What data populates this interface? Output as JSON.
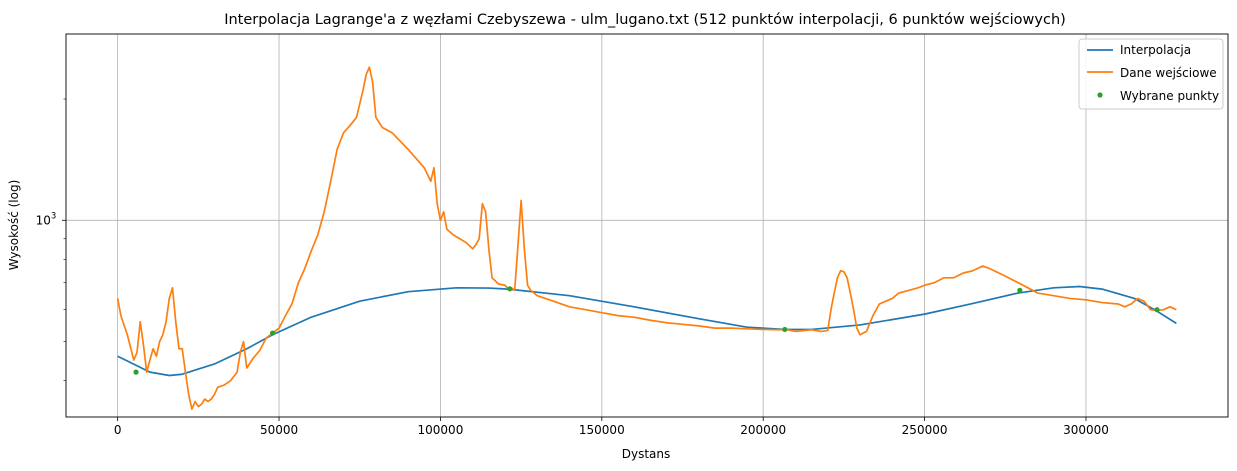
{
  "chart_data": {
    "type": "line",
    "title": "Interpolacja Lagrange'a z węzłami Czebyszewa - ulm_lugano.txt (512 punktów interpolacji, 6 punktów wejściowych)",
    "xlabel": "Dystans",
    "ylabel": "Wysokość (log)",
    "xlim": [
      -16000,
      344000
    ],
    "ylim": [
      325,
      2900
    ],
    "yscale": "log",
    "grid": true,
    "legend_position": "top-right",
    "x_ticks": [
      0,
      50000,
      100000,
      150000,
      200000,
      250000,
      300000
    ],
    "x_tick_labels": [
      "0",
      "50000",
      "100000",
      "150000",
      "200000",
      "250000",
      "300000"
    ],
    "y_ticks": [
      1000
    ],
    "y_tick_labels": [
      "10^3"
    ],
    "y_tick_base": "10",
    "y_tick_exp": "3",
    "y_minor_ticks": [
      400,
      500,
      600,
      700,
      800,
      900,
      2000
    ],
    "colors": {
      "interpolation": "#1f77b4",
      "input": "#ff7f0e",
      "selected": "#2ca02c",
      "grid": "#b0b0b0"
    },
    "series": [
      {
        "name": "Interpolacja",
        "style": "line",
        "color": "#1f77b4",
        "x": [
          0,
          10000,
          16000,
          20000,
          30000,
          40000,
          48000,
          60000,
          75000,
          90000,
          105000,
          115000,
          121000,
          140000,
          160000,
          180000,
          195000,
          207000,
          215000,
          230000,
          250000,
          265000,
          279000,
          290000,
          298000,
          305000,
          315000,
          322000,
          328000
        ],
        "values": [
          460,
          420,
          412,
          415,
          440,
          480,
          520,
          575,
          630,
          665,
          680,
          679,
          675,
          650,
          610,
          570,
          543,
          536,
          536,
          550,
          585,
          622,
          660,
          680,
          685,
          675,
          640,
          595,
          555
        ]
      },
      {
        "name": "Dane wejściowe",
        "style": "line",
        "color": "#ff7f0e",
        "x": [
          0,
          1000,
          3000,
          5000,
          6000,
          7000,
          8000,
          9000,
          10000,
          11000,
          12000,
          13000,
          14000,
          15000,
          16000,
          17000,
          18000,
          19000,
          20000,
          21000,
          22000,
          23000,
          24000,
          25000,
          26000,
          27000,
          28000,
          29000,
          30000,
          31000,
          33000,
          35000,
          37000,
          38000,
          39000,
          40000,
          42000,
          44000,
          46000,
          48000,
          50000,
          52000,
          54000,
          56000,
          58000,
          60000,
          62000,
          64000,
          66000,
          68000,
          70000,
          72000,
          74000,
          76000,
          77000,
          78000,
          79000,
          80000,
          82000,
          85000,
          90000,
          95000,
          97000,
          98000,
          99000,
          100000,
          101000,
          102000,
          104000,
          106000,
          108000,
          110000,
          111000,
          112000,
          113000,
          114000,
          115000,
          116000,
          118000,
          120000,
          121000,
          122000,
          123000,
          124000,
          125000,
          126000,
          127000,
          128000,
          130000,
          135000,
          140000,
          145000,
          150000,
          155000,
          160000,
          165000,
          170000,
          175000,
          180000,
          185000,
          190000,
          195000,
          200000,
          205000,
          207000,
          210000,
          215000,
          218000,
          220000,
          221000,
          222000,
          223000,
          224000,
          225000,
          226000,
          227000,
          228000,
          229000,
          230000,
          232000,
          234000,
          236000,
          238000,
          240000,
          242000,
          245000,
          248000,
          250000,
          253000,
          256000,
          259000,
          262000,
          265000,
          268000,
          270000,
          273000,
          276000,
          279000,
          282000,
          285000,
          290000,
          295000,
          300000,
          305000,
          310000,
          312000,
          314000,
          316000,
          318000,
          320000,
          322000,
          324000,
          326000,
          328000
        ],
        "values": [
          640,
          580,
          520,
          450,
          470,
          560,
          490,
          420,
          450,
          480,
          460,
          500,
          520,
          560,
          640,
          680,
          560,
          480,
          480,
          420,
          370,
          340,
          355,
          345,
          350,
          360,
          355,
          360,
          370,
          385,
          390,
          400,
          420,
          470,
          500,
          430,
          455,
          475,
          510,
          525,
          540,
          580,
          620,
          700,
          760,
          840,
          920,
          1050,
          1250,
          1500,
          1650,
          1720,
          1800,
          2100,
          2300,
          2400,
          2200,
          1800,
          1700,
          1650,
          1500,
          1350,
          1250,
          1350,
          1100,
          1000,
          1050,
          950,
          920,
          900,
          880,
          850,
          870,
          900,
          1100,
          1050,
          850,
          720,
          695,
          690,
          676,
          680,
          670,
          860,
          1120,
          850,
          690,
          670,
          650,
          630,
          610,
          600,
          590,
          580,
          575,
          565,
          557,
          552,
          547,
          540,
          540,
          538,
          536,
          535,
          536,
          530,
          535,
          530,
          533,
          600,
          660,
          720,
          750,
          745,
          720,
          660,
          600,
          540,
          520,
          530,
          580,
          620,
          630,
          640,
          660,
          670,
          680,
          690,
          700,
          720,
          720,
          740,
          750,
          770,
          760,
          740,
          720,
          700,
          680,
          660,
          650,
          640,
          635,
          625,
          620,
          610,
          620,
          640,
          630,
          600,
          597,
          600,
          610,
          600
        ],
        "hidden_in_dom_note": ""
      },
      {
        "name": "Wybrane punkty",
        "style": "points",
        "color": "#2ca02c",
        "x": [
          5700,
          48000,
          121500,
          206700,
          279500,
          322000
        ],
        "values": [
          420,
          525,
          676,
          536,
          670,
          600
        ]
      }
    ]
  }
}
